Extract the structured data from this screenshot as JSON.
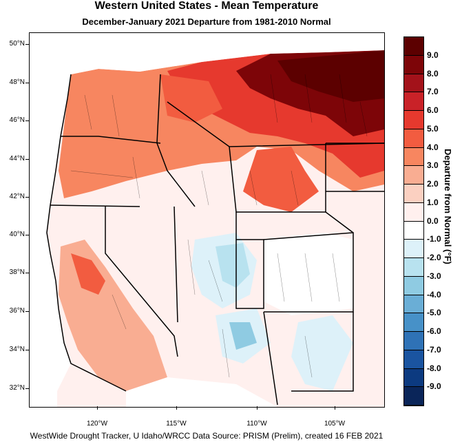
{
  "title": "Western United States - Mean Temperature",
  "subtitle": "December-January 2021  Departure from 1981-2010 Normal",
  "footer": "WestWide Drought Tracker, U Idaho/WRCC Data Source: PRISM (Prelim), created 16 FEB 2021",
  "latitude_labels": [
    "50°N",
    "48°N",
    "46°N",
    "44°N",
    "42°N",
    "40°N",
    "38°N",
    "36°N",
    "34°N",
    "32°N"
  ],
  "longitude_labels": [
    "120°W",
    "115°W",
    "110°W",
    "105°W"
  ],
  "colorbar": {
    "title": "Departure from Normal (°F)",
    "tick_labels": [
      "9.0",
      "8.0",
      "7.0",
      "6.0",
      "5.0",
      "4.0",
      "3.0",
      "2.0",
      "1.0",
      "0.0",
      "-1.0",
      "-2.0",
      "-3.0",
      "-4.0",
      "-5.0",
      "-6.0",
      "-7.0",
      "-8.0",
      "-9.0"
    ],
    "colors": [
      "#5c0000",
      "#7d0508",
      "#a3121a",
      "#c92228",
      "#e6392e",
      "#f25c40",
      "#f78660",
      "#f9ad92",
      "#fbd0c1",
      "#fff0ee",
      "#ffffff",
      "#ddf1f9",
      "#b8e2ef",
      "#8fcbe2",
      "#6aaed6",
      "#4791c8",
      "#2f72b6",
      "#1a54a0",
      "#0c3a80",
      "#0a2559"
    ]
  }
}
